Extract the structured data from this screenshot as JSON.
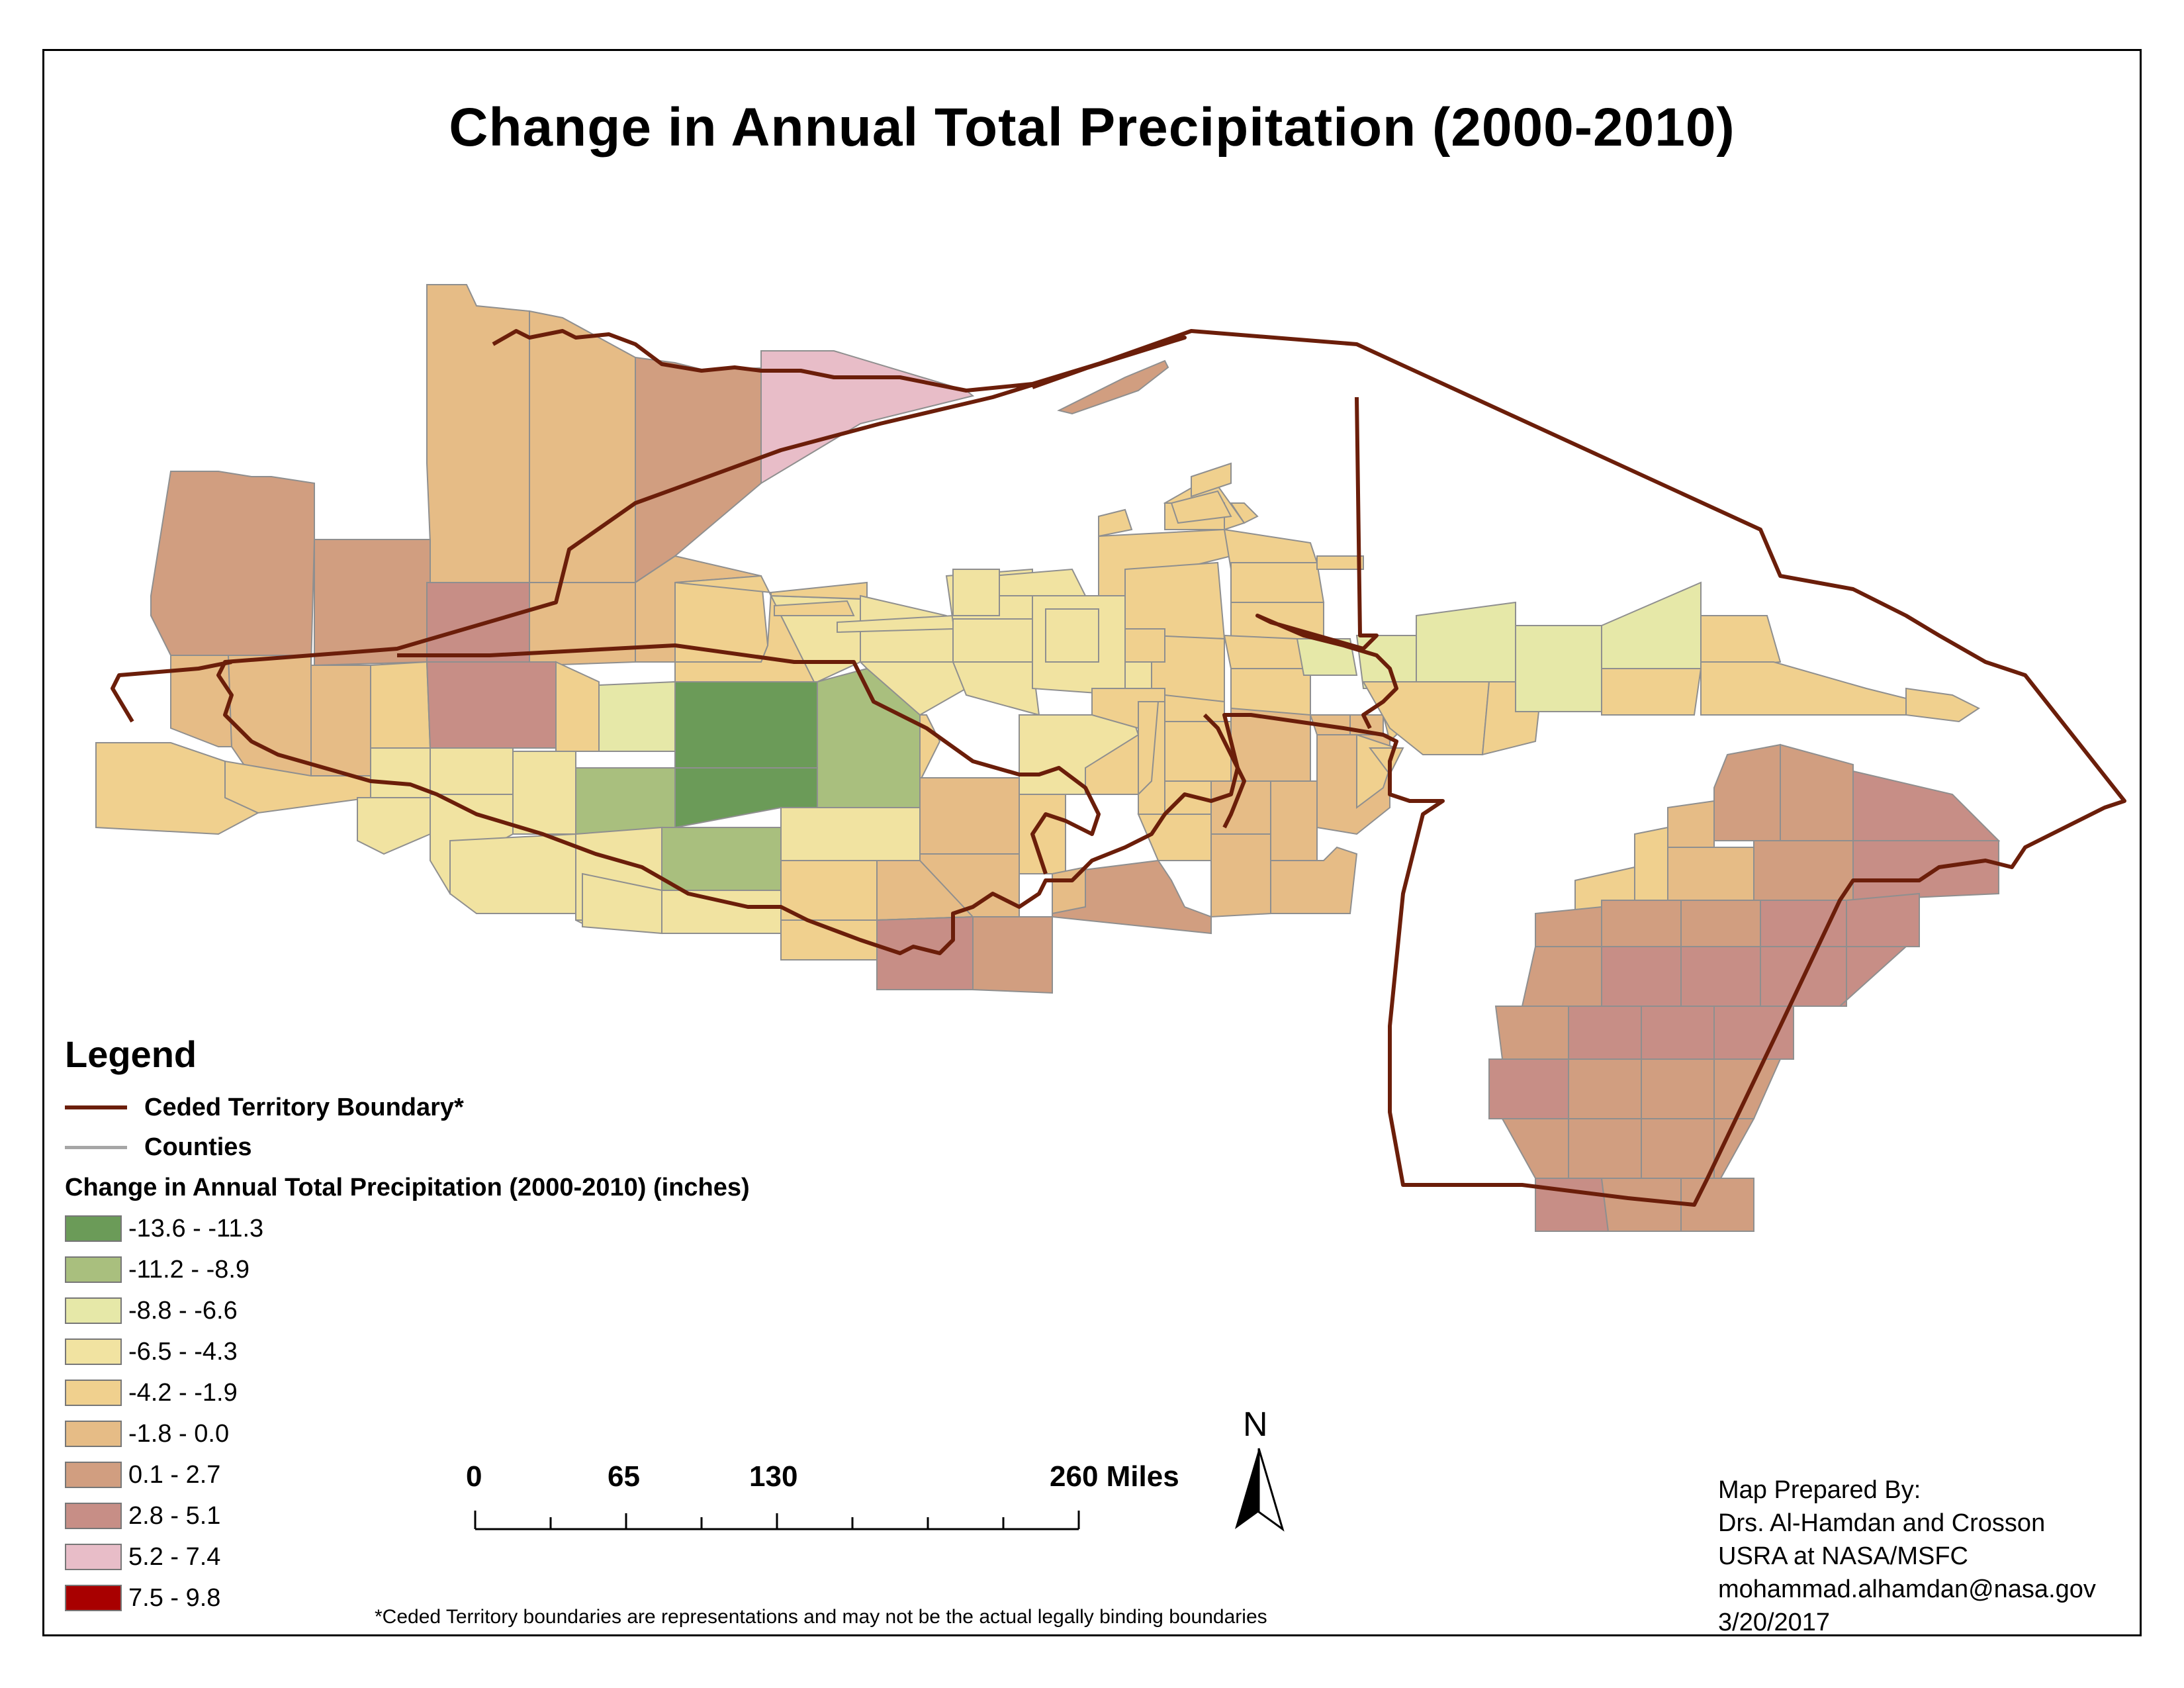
{
  "title": "Change in Annual Total Precipitation (2000-2010)",
  "legend": {
    "title": "Legend",
    "boundary_label": "Ceded Territory Boundary*",
    "boundary_color": "#6b1e0a",
    "counties_label": "Counties",
    "counties_color": "#a6a6a6",
    "classes_title": "Change in Annual Total Precipitation (2000-2010) (inches)",
    "classes": [
      {
        "label": "-13.6 - -11.3",
        "color": "#6b9b58"
      },
      {
        "label": "-11.2 - -8.9",
        "color": "#a9bf7e"
      },
      {
        "label": "-8.8 - -6.6",
        "color": "#e6e8a8"
      },
      {
        "label": "-6.5 - -4.3",
        "color": "#f1e3a1"
      },
      {
        "label": "-4.2 - -1.9",
        "color": "#f0d08e"
      },
      {
        "label": "-1.8 - 0.0",
        "color": "#e6bc86"
      },
      {
        "label": "0.1 - 2.7",
        "color": "#d19e80"
      },
      {
        "label": "2.8 - 5.1",
        "color": "#c78e86"
      },
      {
        "label": "5.2 - 7.4",
        "color": "#e8bdc8"
      },
      {
        "label": "7.5 - 9.8",
        "color": "#a80000"
      }
    ]
  },
  "north_arrow": {
    "label": "N",
    "icon": "north-arrow-icon"
  },
  "scale_bar": {
    "labels": [
      "0",
      "65",
      "130",
      "260 Miles"
    ]
  },
  "footnote": "*Ceded Territory boundaries are representations and may not be the actual legally binding boundaries",
  "credits": {
    "line1": "Map Prepared By:",
    "line2": "Drs. Al-Hamdan and Crosson",
    "line3": "USRA at NASA/MSFC",
    "line4": "mohammad.alhamdan@nasa.gov",
    "line5": "3/20/2017"
  }
}
